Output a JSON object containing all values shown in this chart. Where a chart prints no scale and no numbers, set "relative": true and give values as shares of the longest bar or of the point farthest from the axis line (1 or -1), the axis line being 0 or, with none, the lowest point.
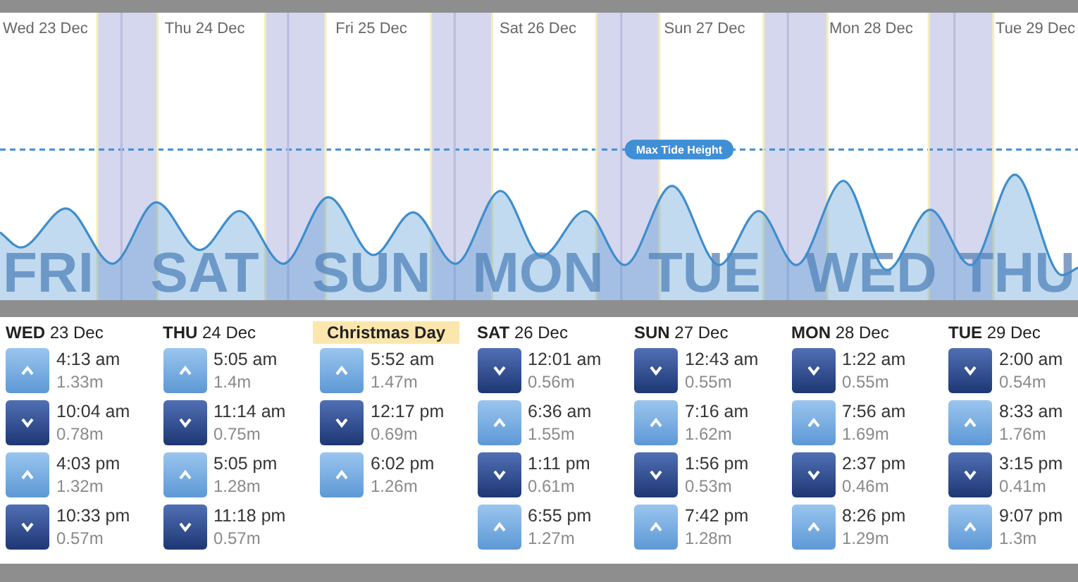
{
  "chart_data": [
    {
      "type": "area",
      "relative": true,
      "series": [
        {
          "color": "#3e8dcc",
          "x": [
            "--12-23T06:30",
            "--12-23T09:30",
            "--12-23T16:00",
            "--12-23T22:42",
            "--12-24T05:00",
            "--12-24T11:18",
            "--12-24T17:00",
            "--12-24T23:18",
            "--12-25T05:48",
            "--12-25T12:18",
            "--12-25T18:00",
            "--12-26T00:06",
            "--12-26T06:36",
            "--12-26T12:30",
            "--12-26T18:48",
            "--12-27T00:30",
            "--12-27T07:18",
            "--12-27T14:06",
            "--12-27T19:48",
            "--12-28T01:12",
            "--12-28T08:00",
            "--12-28T14:18",
            "--12-28T20:30",
            "--12-29T02:18",
            "--12-29T08:42",
            "--12-29T15:30",
            "--12-29T17:48"
          ],
          "values": [
            0.54,
            0.42,
            0.73,
            0.29,
            0.78,
            0.4,
            0.71,
            0.29,
            0.82,
            0.36,
            0.7,
            0.29,
            0.87,
            0.35,
            0.71,
            0.28,
            0.91,
            0.28,
            0.71,
            0.28,
            0.95,
            0.24,
            0.72,
            0.28,
            1,
            0.2,
            0.26
          ]
        }
      ],
      "xlim": [
        "--12-23T06:30",
        "--12-29T17:48"
      ],
      "xticks": [
        {
          "value": "--12-23T12:00",
          "label": "Wed 23 Dec"
        },
        {
          "value": "--12-24T12:00",
          "label": "Thu 24 Dec"
        },
        {
          "value": "--12-25T12:00",
          "label": "Fri 25 Dec"
        },
        {
          "value": "--12-26T12:00",
          "label": "Sat 26 Dec"
        },
        {
          "value": "--12-27T12:00",
          "label": "Sun 27 Dec"
        },
        {
          "value": "--12-28T12:00",
          "label": "Mon 28 Dec"
        },
        {
          "value": "--12-29T12:00",
          "label": "Tue 29 Dec"
        }
      ],
      "annotations": [
        "FRI",
        "SAT",
        "SUN",
        "MON",
        "TUE",
        "WED",
        "THU"
      ],
      "bands": [
        {
          "axis": "x",
          "from": "--12-23T20:30",
          "to": "--12-24T05:12",
          "color": "#d5d7ee"
        },
        {
          "axis": "x",
          "from": "--12-24T20:42",
          "to": "--12-25T05:24",
          "color": "#d5d7ee"
        },
        {
          "axis": "x",
          "from": "--12-25T20:36",
          "to": "--12-26T05:24",
          "color": "#d5d7ee"
        },
        {
          "axis": "x",
          "from": "--12-26T20:24",
          "to": "--12-27T05:30",
          "color": "#d5d7ee"
        },
        {
          "axis": "x",
          "from": "--12-27T20:30",
          "to": "--12-28T05:42",
          "color": "#d5d7ee"
        },
        {
          "axis": "x",
          "from": "--12-28T20:18",
          "to": "--12-29T05:36",
          "color": "#d5d7ee"
        }
      ],
      "ref_lines": [
        {
          "axis": "y",
          "value": 1.2,
          "label": "Max Tide Height",
          "color": "#3f8fd6",
          "line_style": "dashed"
        },
        {
          "axis": "x",
          "value": "--12-24",
          "color": "#b9bcdd"
        },
        {
          "axis": "x",
          "value": "--12-25",
          "color": "#b9bcdd"
        },
        {
          "axis": "x",
          "value": "--12-26",
          "color": "#b9bcdd"
        },
        {
          "axis": "x",
          "value": "--12-27",
          "color": "#b9bcdd"
        },
        {
          "axis": "x",
          "value": "--12-28",
          "color": "#b9bcdd"
        },
        {
          "axis": "x",
          "value": "--12-29",
          "color": "#b9bcdd"
        },
        {
          "axis": "x",
          "value": "--12-23T20:30",
          "color": "#f6eebb"
        },
        {
          "axis": "x",
          "value": "--12-24T05:12",
          "color": "#f6eebb"
        },
        {
          "axis": "x",
          "value": "--12-24T20:42",
          "color": "#f6eebb"
        },
        {
          "axis": "x",
          "value": "--12-25T05:24",
          "color": "#f6eebb"
        },
        {
          "axis": "x",
          "value": "--12-25T20:36",
          "color": "#f6eebb"
        },
        {
          "axis": "x",
          "value": "--12-26T05:24",
          "color": "#f6eebb"
        },
        {
          "axis": "x",
          "value": "--12-26T20:24",
          "color": "#f6eebb"
        },
        {
          "axis": "x",
          "value": "--12-27T05:30",
          "color": "#f6eebb"
        },
        {
          "axis": "x",
          "value": "--12-27T20:30",
          "color": "#f6eebb"
        },
        {
          "axis": "x",
          "value": "--12-28T05:42",
          "color": "#f6eebb"
        },
        {
          "axis": "x",
          "value": "--12-28T20:18",
          "color": "#f6eebb"
        },
        {
          "axis": "x",
          "value": "--12-29T05:36",
          "color": "#f6eebb"
        }
      ]
    },
    {
      "type": "other",
      "categories": [
        "WED 23 Dec",
        "THU 24 Dec",
        "Christmas Day",
        "SAT 26 Dec",
        "SUN 27 Dec",
        "MON 28 Dec",
        "TUE 29 Dec"
      ],
      "series": [
        {
          "values": [
            1.33,
            1.4,
            1.47,
            0.56,
            0.55,
            0.55,
            0.54
          ],
          "value_labels": [
            "1.33m",
            "1.4m",
            "1.47m",
            "0.56m",
            "0.55m",
            "0.55m",
            "0.54m"
          ]
        },
        {
          "values": [
            0.78,
            0.75,
            0.69,
            1.55,
            1.62,
            1.69,
            1.76
          ],
          "value_labels": [
            "0.78m",
            "0.75m",
            "0.69m",
            "1.55m",
            "1.62m",
            "1.69m",
            "1.76m"
          ]
        },
        {
          "values": [
            1.32,
            1.28,
            1.26,
            0.61,
            0.53,
            0.46,
            0.41
          ],
          "value_labels": [
            "1.32m",
            "1.28m",
            "1.26m",
            "0.61m",
            "0.53m",
            "0.46m",
            "0.41m"
          ]
        },
        {
          "values": [
            0.57,
            0.57,
            null,
            1.27,
            1.28,
            1.29,
            1.3
          ],
          "value_labels": [
            "0.57m",
            "0.57m",
            null,
            "1.27m",
            "1.28m",
            "1.29m",
            "1.3m"
          ]
        }
      ],
      "annotations": [
        "4:13 am",
        "10:04 am",
        "4:03 pm",
        "10:33 pm",
        "5:05 am",
        "11:14 am",
        "5:05 pm",
        "11:18 pm",
        "5:52 am",
        "12:17 pm",
        "6:02 pm",
        "12:01 am",
        "6:36 am",
        "1:11 pm",
        "6:55 pm",
        "12:43 am",
        "7:16 am",
        "1:56 pm",
        "7:42 pm",
        "1:22 am",
        "7:56 am",
        "2:37 pm",
        "8:26 pm",
        "2:00 am",
        "8:33 am",
        "3:15 pm",
        "9:07 pm"
      ]
    }
  ]
}
